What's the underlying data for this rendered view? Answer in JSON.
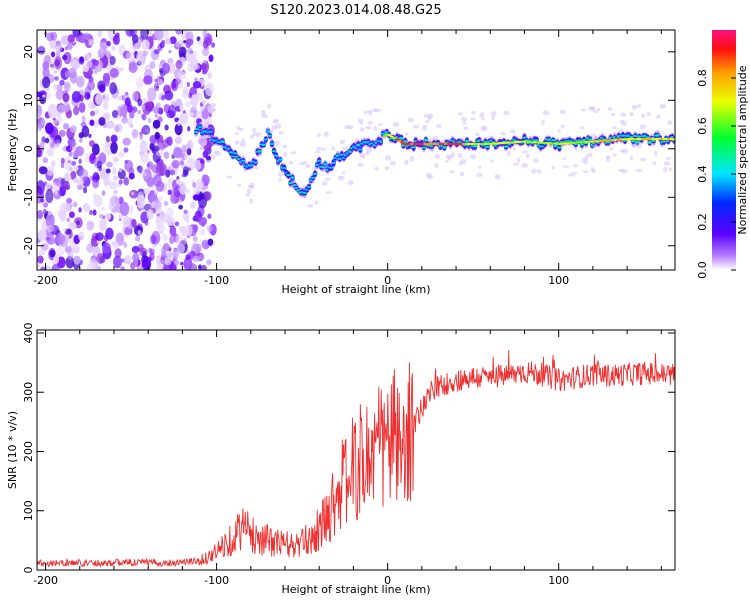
{
  "figure_title": "S120.2023.014.08.48.G25",
  "colors": {
    "snr_line": "#ef2f2f",
    "frame": "#000000",
    "background": "#ffffff"
  },
  "chart_data": [
    {
      "type": "heatmap",
      "title": "",
      "xlabel": "Height of straight line (km)",
      "ylabel": "Frequency (Hz)",
      "xlim": [
        -205,
        168
      ],
      "ylim": [
        -25,
        24.5
      ],
      "xticks": [
        -200,
        -100,
        0,
        100
      ],
      "xtick_labels": [
        "-200",
        "-100",
        "0",
        "100"
      ],
      "yticks": [
        -20,
        -10,
        0,
        10,
        20
      ],
      "ytick_labels": [
        "-20",
        "-10",
        "0",
        "10",
        "20"
      ],
      "colorscale": "rainbow (violet = low, red/magenta = high)",
      "ridge": {
        "description": "Dominant Doppler frequency ridge vs height",
        "x": [
          -110,
          -100,
          -90,
          -80,
          -70,
          -60,
          -50,
          -45,
          -40,
          -35,
          -30,
          -20,
          -10,
          0,
          10,
          20,
          40,
          60,
          80,
          100,
          120,
          140,
          160,
          168
        ],
        "y": [
          4,
          2,
          -1,
          -4,
          3,
          -5,
          -9,
          -7,
          -3,
          -4,
          -2,
          0,
          1,
          3,
          1,
          1,
          1,
          1,
          1.5,
          1,
          1.5,
          2,
          2,
          2
        ]
      },
      "noise_region": {
        "x_range": [
          -205,
          -110
        ],
        "y_range": [
          -25,
          24.5
        ]
      },
      "colorbar": {
        "label": "Normalized spectral amplitude",
        "range": [
          0,
          1
        ],
        "ticks": [
          0.0,
          0.2,
          0.4,
          0.6,
          0.8
        ],
        "tick_labels": [
          "0.0",
          "0.2",
          "0.4",
          "0.6",
          "0.8"
        ]
      }
    },
    {
      "type": "line",
      "title": "",
      "xlabel": "Height of straight line (km)",
      "ylabel": "SNR (10 * v/v)",
      "xlim": [
        -205,
        168
      ],
      "ylim": [
        0,
        405
      ],
      "xticks": [
        -200,
        -100,
        0,
        100
      ],
      "xtick_labels": [
        "-200",
        "-100",
        "0",
        "100"
      ],
      "yticks": [
        0,
        100,
        200,
        300,
        400
      ],
      "ytick_labels": [
        "0",
        "100",
        "200",
        "300",
        "400"
      ],
      "series": [
        {
          "x": [
            -205,
            -190,
            -170,
            -150,
            -130,
            -110,
            -100,
            -95,
            -90,
            -85,
            -80,
            -75,
            -70,
            -65,
            -60,
            -55,
            -50,
            -45,
            -40,
            -35,
            -30,
            -25,
            -20,
            -15,
            -10,
            -5,
            0,
            5,
            10,
            13,
            15,
            20,
            25,
            30,
            40,
            50,
            60,
            70,
            80,
            90,
            100,
            110,
            120,
            130,
            140,
            150,
            160,
            168
          ],
          "y": [
            12,
            12,
            12,
            13,
            12,
            15,
            30,
            45,
            55,
            75,
            60,
            55,
            50,
            45,
            45,
            40,
            45,
            55,
            70,
            90,
            130,
            150,
            170,
            185,
            195,
            205,
            215,
            225,
            170,
            260,
            240,
            275,
            300,
            310,
            320,
            325,
            325,
            328,
            335,
            330,
            320,
            325,
            330,
            328,
            330,
            332,
            330,
            330
          ]
        }
      ]
    }
  ]
}
